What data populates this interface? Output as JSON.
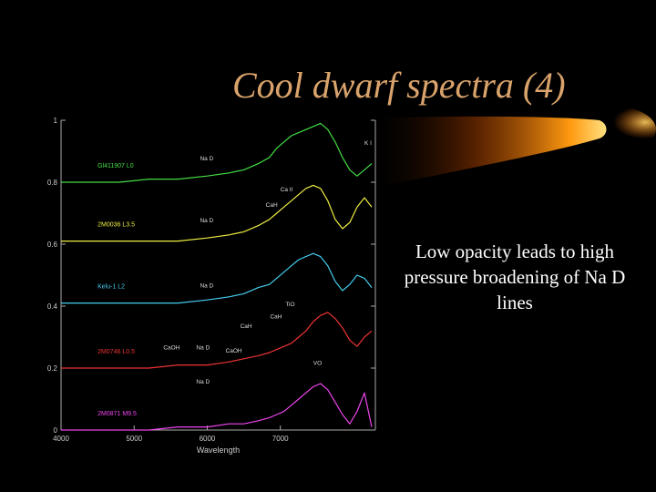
{
  "slide": {
    "title": "Cool dwarf spectra (4)",
    "body_text": "Low opacity leads to high pressure broadening of Na D lines"
  },
  "colors": {
    "background": "#000000",
    "title": "#d9a36b",
    "body_text": "#ffffff",
    "accent_beam": "#ff8c00"
  },
  "chart_data": {
    "type": "line",
    "xlabel": "Wavelength",
    "ylabel": "",
    "xlim": [
      4000,
      8300
    ],
    "ylim": [
      0,
      1
    ],
    "x_ticks": [
      4000,
      5000,
      6000,
      7000
    ],
    "x_tick_labels": [
      "4000",
      "5000",
      "6000",
      "7000"
    ],
    "y_ticks": [
      0,
      0.2,
      0.4,
      0.6,
      0.8,
      1
    ],
    "y_tick_labels": [
      "0",
      "0.2",
      "0.4",
      "0.6",
      "0.8",
      "1"
    ],
    "grid": false,
    "series": [
      {
        "name": "Gl411907 L0",
        "color": "#44dd44",
        "x": [
          4000,
          4400,
          4800,
          5200,
          5600,
          6000,
          6300,
          6500,
          6700,
          6850,
          6950,
          7050,
          7150,
          7250,
          7350,
          7450,
          7550,
          7650,
          7750,
          7850,
          7950,
          8050,
          8150,
          8250
        ],
        "y": [
          0.8,
          0.8,
          0.8,
          0.81,
          0.81,
          0.82,
          0.83,
          0.84,
          0.86,
          0.88,
          0.91,
          0.93,
          0.95,
          0.96,
          0.97,
          0.98,
          0.99,
          0.97,
          0.93,
          0.88,
          0.84,
          0.82,
          0.84,
          0.86
        ]
      },
      {
        "name": "2M0036 L3.5",
        "color": "#eeee44",
        "x": [
          4000,
          4400,
          4800,
          5200,
          5600,
          6000,
          6300,
          6500,
          6700,
          6850,
          6950,
          7050,
          7150,
          7250,
          7350,
          7450,
          7550,
          7650,
          7750,
          7850,
          7950,
          8050,
          8150,
          8250
        ],
        "y": [
          0.61,
          0.61,
          0.61,
          0.61,
          0.61,
          0.62,
          0.63,
          0.64,
          0.66,
          0.68,
          0.7,
          0.72,
          0.74,
          0.76,
          0.78,
          0.79,
          0.78,
          0.74,
          0.68,
          0.65,
          0.67,
          0.72,
          0.75,
          0.72
        ]
      },
      {
        "name": "Kelu-1 L2",
        "color": "#44ccee",
        "x": [
          4000,
          4400,
          4800,
          5200,
          5600,
          6000,
          6300,
          6500,
          6700,
          6850,
          6950,
          7050,
          7150,
          7250,
          7350,
          7450,
          7550,
          7650,
          7750,
          7850,
          7950,
          8050,
          8150,
          8250
        ],
        "y": [
          0.41,
          0.41,
          0.41,
          0.41,
          0.41,
          0.42,
          0.43,
          0.44,
          0.46,
          0.47,
          0.49,
          0.51,
          0.53,
          0.55,
          0.56,
          0.57,
          0.56,
          0.53,
          0.48,
          0.45,
          0.47,
          0.5,
          0.49,
          0.46
        ]
      },
      {
        "name": "2M0746 L0.5",
        "color": "#ee3333",
        "x": [
          4000,
          4400,
          4800,
          5200,
          5600,
          6000,
          6300,
          6500,
          6700,
          6850,
          6950,
          7050,
          7150,
          7250,
          7350,
          7450,
          7550,
          7650,
          7750,
          7850,
          7950,
          8050,
          8150,
          8250
        ],
        "y": [
          0.2,
          0.2,
          0.2,
          0.2,
          0.21,
          0.21,
          0.22,
          0.23,
          0.24,
          0.25,
          0.26,
          0.27,
          0.28,
          0.3,
          0.32,
          0.35,
          0.37,
          0.38,
          0.36,
          0.33,
          0.29,
          0.27,
          0.3,
          0.32
        ]
      },
      {
        "name": "2M0871 M9.5",
        "color": "#ee44ee",
        "x": [
          4000,
          4400,
          4800,
          5200,
          5600,
          6000,
          6300,
          6500,
          6700,
          6850,
          6950,
          7050,
          7150,
          7250,
          7350,
          7450,
          7550,
          7650,
          7750,
          7850,
          7950,
          8050,
          8150,
          8250
        ],
        "y": [
          0.0,
          0.0,
          0.0,
          0.0,
          0.01,
          0.01,
          0.02,
          0.02,
          0.03,
          0.04,
          0.05,
          0.06,
          0.08,
          0.1,
          0.12,
          0.14,
          0.15,
          0.13,
          0.09,
          0.05,
          0.02,
          0.06,
          0.12,
          0.01
        ]
      }
    ],
    "annotations": [
      {
        "text": "Na D",
        "x": 5900,
        "y": 0.87
      },
      {
        "text": "K I",
        "x": 8150,
        "y": 0.92
      },
      {
        "text": "CaH",
        "x": 6800,
        "y": 0.72
      },
      {
        "text": "Ca II",
        "x": 7000,
        "y": 0.77
      },
      {
        "text": "Na D",
        "x": 5900,
        "y": 0.67
      },
      {
        "text": "Na D",
        "x": 5900,
        "y": 0.46
      },
      {
        "text": "TiO",
        "x": 7070,
        "y": 0.4
      },
      {
        "text": "CaH",
        "x": 6860,
        "y": 0.36
      },
      {
        "text": "CaH",
        "x": 6450,
        "y": 0.33
      },
      {
        "text": "CaOH",
        "x": 5400,
        "y": 0.26
      },
      {
        "text": "Na D",
        "x": 5850,
        "y": 0.26
      },
      {
        "text": "CaOH",
        "x": 6250,
        "y": 0.25
      },
      {
        "text": "VO",
        "x": 7450,
        "y": 0.21
      },
      {
        "text": "Na D",
        "x": 5850,
        "y": 0.15
      }
    ]
  }
}
